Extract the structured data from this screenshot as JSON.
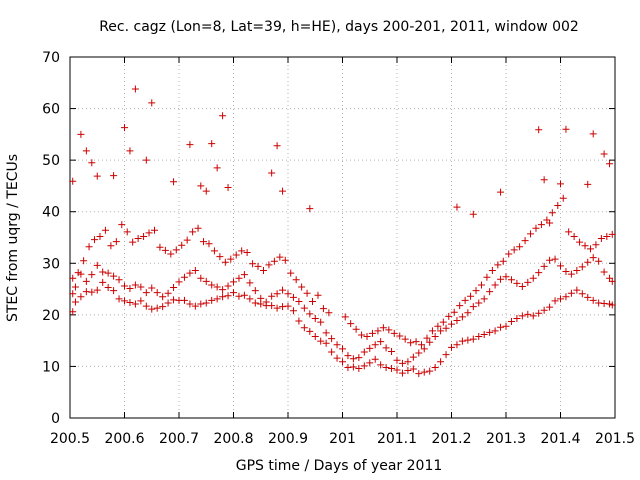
{
  "chart_data": {
    "type": "scatter",
    "title": "Rec. cagz (Lon=8, Lat=39, h=HE), days 200-201, 2011, window 002",
    "xlabel": "GPS time / Days of year 2011",
    "ylabel": "STEC from uqrg / TECUs",
    "xlim": [
      200.5,
      201.5
    ],
    "ylim": [
      0,
      70
    ],
    "xticks": [
      "200.5",
      "200.6",
      "200.7",
      "200.8",
      "200.9",
      "201",
      "201.1",
      "201.2",
      "201.3",
      "201.4",
      "201.5"
    ],
    "yticks": [
      "0",
      "10",
      "20",
      "30",
      "40",
      "50",
      "60",
      "70"
    ],
    "grid": true,
    "marker": "+",
    "color": "#cc0000",
    "series": [
      {
        "name": "STEC",
        "x": [
          200.505,
          200.51,
          200.52,
          200.53,
          200.54,
          200.55,
          200.56,
          200.57,
          200.58,
          200.59,
          200.6,
          200.61,
          200.62,
          200.63,
          200.64,
          200.65,
          200.66,
          200.67,
          200.68,
          200.69,
          200.7,
          200.71,
          200.72,
          200.73,
          200.74,
          200.75,
          200.76,
          200.77,
          200.78,
          200.79,
          200.8,
          200.81,
          200.82,
          200.83,
          200.84,
          200.85,
          200.86,
          200.87,
          200.88,
          200.89,
          200.9,
          200.91,
          200.92,
          200.93,
          200.94,
          200.95,
          200.96,
          200.97,
          200.98,
          200.99,
          201.0,
          201.01,
          201.02,
          201.03,
          201.04,
          201.05,
          201.06,
          201.07,
          201.08,
          201.09,
          201.1,
          201.11,
          201.12,
          201.13,
          201.14,
          201.15,
          201.16,
          201.17,
          201.18,
          201.19,
          201.2,
          201.21,
          201.22,
          201.23,
          201.24,
          201.25,
          201.26,
          201.27,
          201.28,
          201.29,
          201.3,
          201.31,
          201.32,
          201.33,
          201.34,
          201.35,
          201.36,
          201.37,
          201.38,
          201.39,
          201.4,
          201.41,
          201.42,
          201.43,
          201.44,
          201.45,
          201.46,
          201.47,
          201.48,
          201.49,
          201.495,
          200.505,
          200.51,
          200.52,
          200.53,
          200.54,
          200.55,
          200.56,
          200.57,
          200.58,
          200.59,
          200.6,
          200.61,
          200.62,
          200.63,
          200.64,
          200.65,
          200.66,
          200.67,
          200.68,
          200.69,
          200.7,
          200.71,
          200.72,
          200.73,
          200.74,
          200.75,
          200.76,
          200.77,
          200.78,
          200.79,
          200.8,
          200.81,
          200.82,
          200.83,
          200.84,
          200.85,
          200.86,
          200.87,
          200.88,
          200.89,
          200.9,
          200.91,
          200.92,
          200.93,
          200.94,
          200.95,
          200.96,
          200.97,
          200.98,
          200.99,
          201.0,
          201.01,
          201.02,
          201.03,
          201.04,
          201.05,
          201.06,
          201.07,
          201.08,
          201.09,
          201.1,
          201.11,
          201.12,
          201.13,
          201.14,
          201.15,
          201.16,
          201.17,
          201.18,
          201.19,
          201.2,
          201.21,
          201.22,
          201.23,
          201.24,
          201.25,
          201.26,
          201.27,
          201.28,
          201.29,
          201.3,
          201.31,
          201.32,
          201.33,
          201.34,
          201.35,
          201.36,
          201.37,
          201.38,
          201.39,
          201.4,
          201.41,
          201.42,
          201.43,
          201.44,
          201.45,
          201.46,
          201.47,
          201.48,
          201.49,
          201.495,
          200.505,
          200.515,
          200.525,
          200.535,
          200.545,
          200.555,
          200.565,
          200.575,
          200.585,
          200.595,
          200.605,
          200.615,
          200.625,
          200.635,
          200.645,
          200.655,
          200.665,
          200.675,
          200.685,
          200.695,
          200.705,
          200.715,
          200.725,
          200.735,
          200.745,
          200.755,
          200.765,
          200.775,
          200.785,
          200.795,
          200.805,
          200.815,
          200.825,
          200.835,
          200.845,
          200.855,
          200.865,
          200.875,
          200.885,
          200.895,
          200.905,
          200.915,
          200.925,
          200.935,
          200.945,
          200.955,
          200.965,
          200.975,
          201.005,
          201.015,
          201.025,
          201.035,
          201.045,
          201.055,
          201.065,
          201.075,
          201.085,
          201.095,
          201.105,
          201.115,
          201.125,
          201.135,
          201.145,
          201.155,
          201.165,
          201.175,
          201.185,
          201.195,
          201.205,
          201.215,
          201.225,
          201.235,
          201.245,
          201.255,
          201.265,
          201.275,
          201.285,
          201.295,
          201.305,
          201.315,
          201.325,
          201.335,
          201.345,
          201.355,
          201.365,
          201.375,
          201.385,
          201.395,
          201.405,
          201.415,
          201.425,
          201.435,
          201.445,
          201.455,
          201.465,
          201.475,
          201.485,
          201.495,
          200.505,
          200.52,
          200.53,
          200.54,
          200.55,
          200.58,
          200.6,
          200.61,
          200.62,
          200.64,
          200.65,
          200.69,
          200.72,
          200.74,
          200.75,
          200.76,
          200.77,
          200.78,
          200.79,
          200.87,
          200.88,
          200.89,
          200.94,
          201.21,
          201.24,
          201.29,
          201.36,
          201.37,
          201.38,
          201.4,
          201.41,
          201.45,
          201.46,
          201.48,
          201.49
        ],
        "y": [
          20.6,
          22.5,
          23.5,
          24.5,
          24.4,
          24.8,
          26.3,
          25.3,
          24.7,
          23.1,
          22.7,
          22.4,
          22.1,
          22.7,
          21.7,
          21.1,
          21.3,
          21.6,
          22.3,
          22.9,
          22.8,
          22.8,
          22.1,
          21.7,
          22.1,
          22.3,
          22.8,
          23.1,
          23.5,
          23.7,
          24.3,
          23.6,
          23.8,
          23.1,
          22.3,
          22.1,
          21.8,
          21.8,
          21.3,
          21.6,
          21.7,
          20.8,
          18.8,
          17.5,
          16.8,
          15.8,
          14.9,
          14.5,
          12.8,
          11.6,
          10.9,
          9.8,
          9.9,
          9.6,
          10.1,
          10.7,
          11.4,
          10.3,
          9.8,
          9.6,
          9.3,
          8.7,
          9.2,
          9.5,
          8.6,
          8.9,
          9.1,
          9.8,
          10.9,
          12.3,
          13.7,
          14.2,
          14.9,
          15.1,
          15.3,
          15.8,
          16.2,
          16.6,
          16.9,
          17.6,
          17.8,
          18.7,
          19.3,
          19.8,
          20.1,
          19.8,
          20.3,
          20.9,
          21.5,
          22.7,
          23.1,
          23.5,
          24.2,
          24.8,
          24.1,
          23.4,
          22.8,
          22.3,
          22.2,
          22.1,
          21.9,
          24.1,
          25.4,
          27.9,
          26.5,
          27.8,
          29.6,
          28.3,
          28.1,
          27.5,
          26.8,
          25.6,
          25.1,
          25.8,
          25.4,
          24.3,
          25.2,
          24.3,
          23.5,
          24.2,
          25.3,
          26.4,
          27.3,
          28.1,
          28.6,
          27.1,
          26.5,
          25.8,
          25.4,
          24.9,
          25.6,
          26.4,
          27.1,
          27.8,
          26.2,
          24.7,
          23.2,
          22.5,
          23.6,
          24.1,
          24.8,
          24.1,
          23.4,
          22.6,
          21.3,
          20.2,
          19.3,
          18.6,
          16.5,
          15.4,
          14.2,
          13.4,
          12.1,
          11.5,
          11.7,
          12.8,
          13.5,
          14.2,
          14.8,
          13.6,
          12.9,
          11.2,
          10.6,
          10.9,
          11.8,
          12.6,
          13.4,
          14.7,
          15.8,
          16.9,
          17.4,
          18.2,
          18.9,
          19.6,
          20.4,
          21.6,
          22.3,
          23.1,
          24.5,
          25.8,
          26.9,
          27.4,
          26.8,
          26.1,
          25.5,
          26.3,
          27.1,
          28.2,
          29.4,
          30.6,
          30.8,
          29.5,
          28.4,
          27.9,
          28.6,
          29.3,
          30.2,
          31.1,
          30.4,
          28.3,
          27.1,
          26.5,
          27.1,
          28.2,
          30.5,
          33.2,
          34.6,
          35.2,
          36.4,
          33.4,
          34.2,
          37.5,
          36.1,
          34.1,
          34.8,
          35.2,
          35.9,
          36.4,
          33.1,
          32.5,
          31.8,
          32.6,
          33.5,
          34.5,
          36.1,
          36.8,
          34.2,
          33.8,
          32.4,
          31.3,
          30.2,
          30.8,
          31.6,
          32.4,
          32.1,
          29.9,
          29.4,
          28.6,
          29.7,
          30.4,
          31.2,
          30.6,
          28.1,
          26.8,
          25.4,
          24.2,
          22.6,
          23.8,
          21.2,
          20.4,
          19.6,
          18.3,
          17.2,
          16.1,
          15.8,
          16.4,
          16.9,
          17.5,
          17.1,
          16.4,
          15.9,
          15.3,
          14.6,
          14.8,
          14.2,
          15.5,
          16.9,
          17.8,
          18.6,
          19.7,
          20.5,
          21.8,
          22.8,
          23.6,
          24.7,
          25.8,
          27.3,
          28.6,
          29.7,
          30.4,
          31.8,
          32.6,
          33.2,
          34.4,
          35.7,
          36.8,
          37.5,
          38.4,
          39.8,
          41.2,
          42.6,
          36.1,
          35.2,
          34.1,
          33.4,
          32.8,
          33.6,
          34.8,
          35.2,
          35.6,
          45.9,
          55.0,
          51.8,
          49.5,
          46.9,
          47.0,
          56.3,
          51.8,
          63.8,
          50.0,
          61.1,
          45.8,
          53.0,
          45.0,
          44.0,
          53.2,
          48.5,
          58.6,
          44.7,
          47.5,
          52.8,
          44.0,
          40.6,
          40.9,
          39.5,
          43.8,
          55.9,
          46.2,
          37.8,
          45.4,
          56.0,
          45.3,
          55.1,
          51.2,
          49.3
        ]
      }
    ]
  }
}
